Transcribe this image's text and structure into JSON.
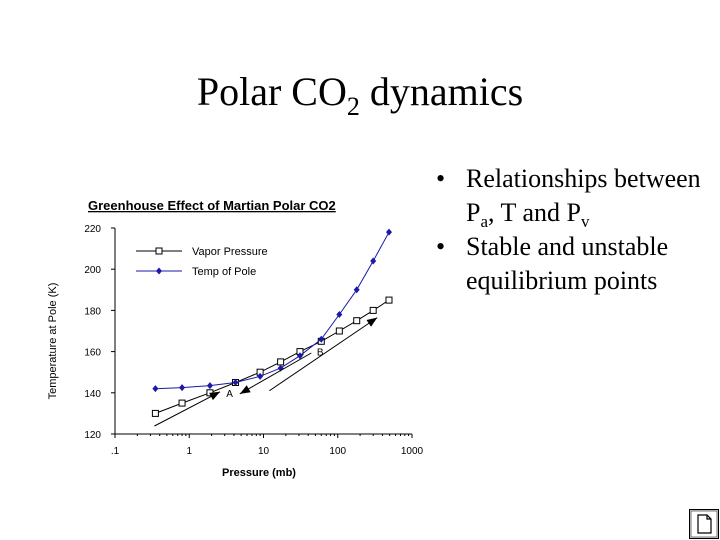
{
  "slide": {
    "title_main": "Polar CO",
    "title_sub": "2",
    "title_rest": " dynamics"
  },
  "bullets": {
    "b1_pre": "Relationships between P",
    "b1_sub_a": "a",
    "b1_mid": ", T and P",
    "b1_sub_v": "v",
    "b2": "Stable and unstable equilibrium points"
  },
  "chart_data": {
    "type": "line",
    "title": "Greenhouse Effect of Martian Polar CO2",
    "xlabel": "Pressure (mb)",
    "ylabel": "Temperature at Pole (K)",
    "xscale": "log",
    "xlim": [
      0.1,
      1000
    ],
    "ylim": [
      120,
      220
    ],
    "x_ticks": [
      ".1",
      "1",
      "10",
      "100",
      "1000"
    ],
    "y_ticks": [
      "120",
      "140",
      "160",
      "180",
      "200",
      "220"
    ],
    "legend_placement": "top-left",
    "series": [
      {
        "name": "Vapor Pressure",
        "marker": "open-square",
        "x": [
          0.35,
          0.8,
          1.9,
          4.2,
          9,
          17,
          31,
          60,
          105,
          180,
          300,
          490
        ],
        "y": [
          130,
          135,
          140,
          145,
          150,
          155,
          160,
          165,
          170,
          175,
          180,
          185
        ]
      },
      {
        "name": "Temp of Pole",
        "marker": "filled-diamond",
        "x": [
          0.35,
          0.8,
          1.9,
          4.2,
          9,
          17,
          31,
          60,
          105,
          180,
          300,
          490
        ],
        "y": [
          142,
          142.5,
          143.5,
          145,
          148,
          152,
          158,
          166,
          178,
          190,
          204,
          218
        ]
      }
    ],
    "annotations": [
      {
        "label": "A",
        "x": 3.5,
        "y": 140
      },
      {
        "label": "B",
        "x": 58,
        "y": 160
      }
    ]
  },
  "colors": {
    "vapor_pressure": "#000000",
    "temp_of_pole": "#1a1aa6"
  },
  "icons": {
    "nav": "document-icon"
  }
}
